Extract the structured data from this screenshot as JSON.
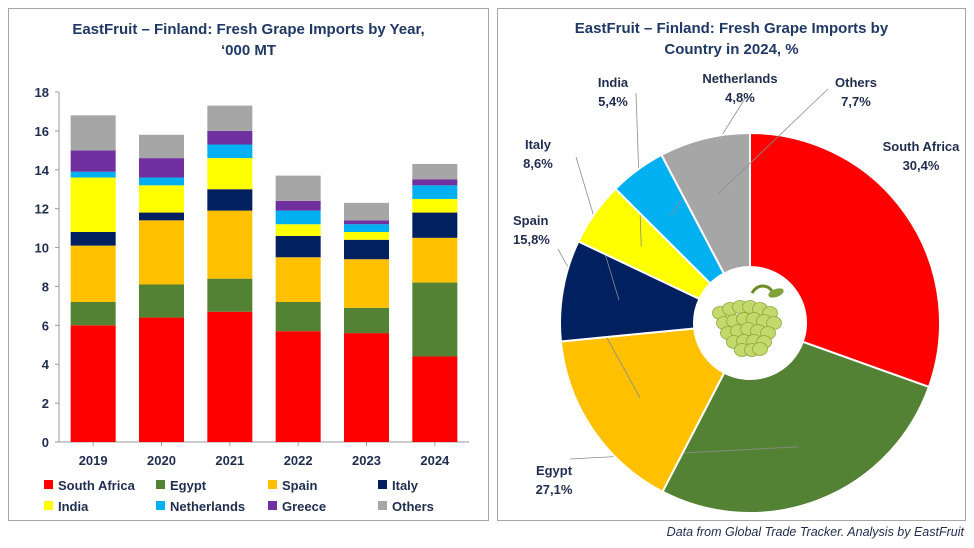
{
  "left_chart": {
    "title_line1": "EastFruit –  Finland: Fresh Grape Imports by Year,",
    "title_line2": "‘000 MT"
  },
  "right_chart": {
    "title_line1": "EastFruit – Finland: Fresh Grape Imports by",
    "title_line2": "Country in 2024, %"
  },
  "footer": "Data from Global Trade Tracker. Analysis by  EastFruit",
  "colors": {
    "South Africa": "#ff0000",
    "Egypt": "#548235",
    "Spain": "#ffc000",
    "Italy": "#002060",
    "India": "#ffff00",
    "Netherlands": "#00b0f0",
    "Greece": "#7030a0",
    "Others": "#a6a6a6"
  },
  "center_icon": "green-grapes-icon",
  "chart_data": [
    {
      "type": "bar",
      "stacked": true,
      "title": "EastFruit –  Finland: Fresh Grape Imports by Year, ‘000 MT",
      "categories": [
        "2019",
        "2020",
        "2021",
        "2022",
        "2023",
        "2024"
      ],
      "ylim": [
        0,
        18
      ],
      "yticks": [
        0,
        2,
        4,
        6,
        8,
        10,
        12,
        14,
        16,
        18
      ],
      "grid": false,
      "legend_position": "bottom",
      "legend_order": [
        "South Africa",
        "Egypt",
        "Spain",
        "Italy",
        "India",
        "Netherlands",
        "Greece",
        "Others"
      ],
      "series": [
        {
          "name": "South Africa",
          "values": [
            6.0,
            6.4,
            6.7,
            5.7,
            5.6,
            4.4
          ]
        },
        {
          "name": "Egypt",
          "values": [
            1.2,
            1.7,
            1.7,
            1.5,
            1.3,
            3.8
          ]
        },
        {
          "name": "Spain",
          "values": [
            2.9,
            3.3,
            3.5,
            2.3,
            2.5,
            2.3
          ]
        },
        {
          "name": "Italy",
          "values": [
            0.7,
            0.4,
            1.1,
            1.1,
            1.0,
            1.3
          ]
        },
        {
          "name": "India",
          "values": [
            2.8,
            1.4,
            1.6,
            0.6,
            0.4,
            0.7
          ]
        },
        {
          "name": "Netherlands",
          "values": [
            0.3,
            0.4,
            0.7,
            0.7,
            0.4,
            0.7
          ]
        },
        {
          "name": "Greece",
          "values": [
            1.1,
            1.0,
            0.7,
            0.5,
            0.2,
            0.3
          ]
        },
        {
          "name": "Others",
          "values": [
            1.8,
            1.2,
            1.3,
            1.3,
            0.9,
            0.8
          ]
        }
      ]
    },
    {
      "type": "pie",
      "donut": true,
      "title": "EastFruit – Finland: Fresh Grape Imports by Country in 2024, %",
      "slices": [
        {
          "name": "South Africa",
          "value": 30.4,
          "label": "30,4%"
        },
        {
          "name": "Egypt",
          "value": 27.1,
          "label": "27,1%"
        },
        {
          "name": "Spain",
          "value": 15.8,
          "label": "15,8%"
        },
        {
          "name": "Italy",
          "value": 8.6,
          "label": "8,6%"
        },
        {
          "name": "India",
          "value": 5.4,
          "label": "5,4%"
        },
        {
          "name": "Netherlands",
          "value": 4.8,
          "label": "4,8%"
        },
        {
          "name": "Others",
          "value": 7.7,
          "label": "7,7%"
        }
      ]
    }
  ]
}
